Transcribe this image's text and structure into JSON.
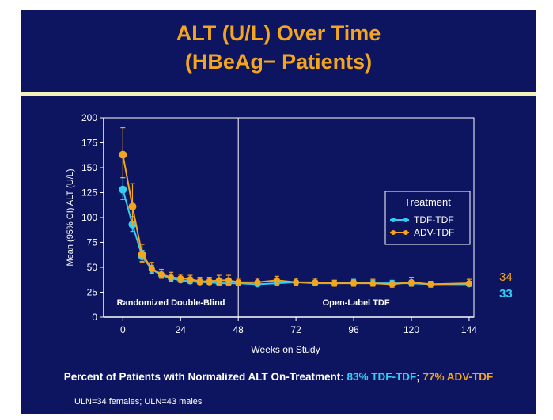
{
  "slide": {
    "title_line1": "ALT (U/L) Over Time",
    "title_line2": "(HBeAg− Patients)",
    "colors": {
      "background": "#0d1560",
      "title": "#f3a51d",
      "divider": "#f5efb8",
      "tdf_tdf": "#33ccf2",
      "adv_tdf": "#f3a51d",
      "text": "#ffffff"
    },
    "footnote": {
      "prefix": "Percent of Patients with Normalized ALT On-Treatment: ",
      "tdf_text": "83% TDF-TDF",
      "separator": "; ",
      "adv_text": "77% ADV-TDF",
      "uln_note": "ULN=34 females; ULN=43 males"
    }
  },
  "chart_data": {
    "type": "line",
    "title": "",
    "xlabel": "Weeks on Study",
    "ylabel": "Mean (95% CI) ALT (U/L)",
    "xlim": [
      -8,
      146
    ],
    "ylim": [
      0,
      200
    ],
    "xticks": [
      0,
      24,
      48,
      72,
      96,
      120,
      144
    ],
    "yticks": [
      0,
      25,
      50,
      75,
      100,
      125,
      150,
      175,
      200
    ],
    "phase_boundary_week": 48,
    "phase_labels": [
      "Randomized Double-Blind",
      "Open-Label TDF"
    ],
    "legend": {
      "title": "Treatment",
      "position": "right"
    },
    "end_labels": [
      {
        "series": "ADV-TDF",
        "text": "34"
      },
      {
        "series": "TDF-TDF",
        "text": "33"
      }
    ],
    "series": [
      {
        "name": "TDF-TDF",
        "color": "#33ccf2",
        "x": [
          0,
          4,
          8,
          12,
          16,
          20,
          24,
          28,
          32,
          36,
          40,
          44,
          48,
          56,
          64,
          72,
          80,
          88,
          96,
          104,
          112,
          120,
          128,
          144
        ],
        "y": [
          128,
          93,
          61,
          48,
          42,
          39,
          37,
          36,
          35,
          35,
          34,
          34,
          34,
          33,
          34,
          35,
          34,
          34,
          35,
          34,
          34,
          34,
          33,
          33
        ],
        "ci_low": [
          118,
          86,
          56,
          45,
          40,
          37,
          35,
          34,
          33,
          33,
          32,
          32,
          32,
          31,
          32,
          32,
          32,
          32,
          33,
          32,
          32,
          32,
          31,
          31
        ],
        "ci_high": [
          140,
          101,
          67,
          52,
          45,
          42,
          40,
          39,
          38,
          38,
          37,
          37,
          37,
          36,
          37,
          39,
          37,
          37,
          38,
          37,
          37,
          37,
          36,
          36
        ]
      },
      {
        "name": "ADV-TDF",
        "color": "#f3a51d",
        "x": [
          0,
          4,
          8,
          12,
          16,
          20,
          24,
          28,
          32,
          36,
          40,
          44,
          48,
          56,
          64,
          72,
          80,
          88,
          96,
          104,
          112,
          120,
          128,
          144
        ],
        "y": [
          163,
          111,
          63,
          49,
          43,
          40,
          39,
          38,
          36,
          36,
          37,
          37,
          35,
          35,
          37,
          35,
          35,
          34,
          34,
          34,
          33,
          35,
          33,
          34
        ],
        "ci_low": [
          140,
          92,
          55,
          44,
          39,
          36,
          35,
          34,
          33,
          33,
          33,
          33,
          32,
          32,
          33,
          32,
          32,
          31,
          31,
          31,
          30,
          31,
          30,
          31
        ],
        "ci_high": [
          190,
          134,
          73,
          55,
          48,
          45,
          43,
          42,
          40,
          40,
          42,
          42,
          39,
          39,
          41,
          39,
          39,
          37,
          37,
          38,
          36,
          40,
          36,
          38
        ]
      }
    ]
  }
}
